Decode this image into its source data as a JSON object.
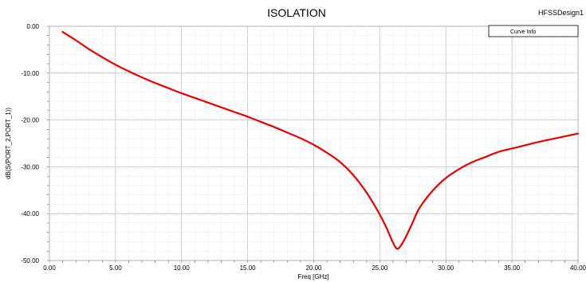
{
  "chart_data": {
    "type": "line",
    "title": "ISOLATION",
    "design_name": "HFSSDesign1",
    "xlabel": "Freq [GHz]",
    "ylabel": "dB(S(PORT_2,PORT_1))",
    "xlim": [
      0,
      40
    ],
    "ylim": [
      -50,
      0
    ],
    "x_ticks": [
      "0.00",
      "5.00",
      "10.00",
      "15.00",
      "20.00",
      "25.00",
      "30.00",
      "35.00",
      "40.00"
    ],
    "y_ticks": [
      "0.00",
      "-10.00",
      "-20.00",
      "-30.00",
      "-40.00",
      "-50.00"
    ],
    "grid": true,
    "legend": {
      "position": "top-right",
      "header": "Curve Info"
    },
    "series": [
      {
        "color": "#ee0000",
        "x": [
          1.0,
          2.0,
          3.0,
          4.0,
          5.0,
          6.0,
          7.0,
          8.0,
          9.0,
          10.0,
          11.0,
          12.0,
          13.0,
          14.0,
          15.0,
          16.0,
          17.0,
          18.0,
          19.0,
          20.0,
          21.0,
          22.0,
          23.0,
          24.0,
          25.0,
          25.5,
          26.0,
          26.3,
          26.6,
          27.0,
          27.5,
          28.0,
          29.0,
          30.0,
          31.0,
          32.0,
          33.0,
          34.0,
          35.0,
          36.0,
          37.0,
          38.0,
          39.0,
          40.0
        ],
        "y": [
          -1.2,
          -3.0,
          -4.9,
          -6.6,
          -8.2,
          -9.6,
          -10.9,
          -12.1,
          -13.2,
          -14.3,
          -15.3,
          -16.3,
          -17.3,
          -18.3,
          -19.3,
          -20.4,
          -21.5,
          -22.7,
          -23.9,
          -25.3,
          -27.0,
          -29.0,
          -31.8,
          -35.5,
          -40.2,
          -43.0,
          -46.2,
          -47.5,
          -46.8,
          -44.8,
          -41.8,
          -38.8,
          -35.1,
          -32.4,
          -30.5,
          -29.0,
          -27.9,
          -26.8,
          -26.1,
          -25.4,
          -24.7,
          -24.1,
          -23.5,
          -22.9
        ]
      }
    ]
  }
}
